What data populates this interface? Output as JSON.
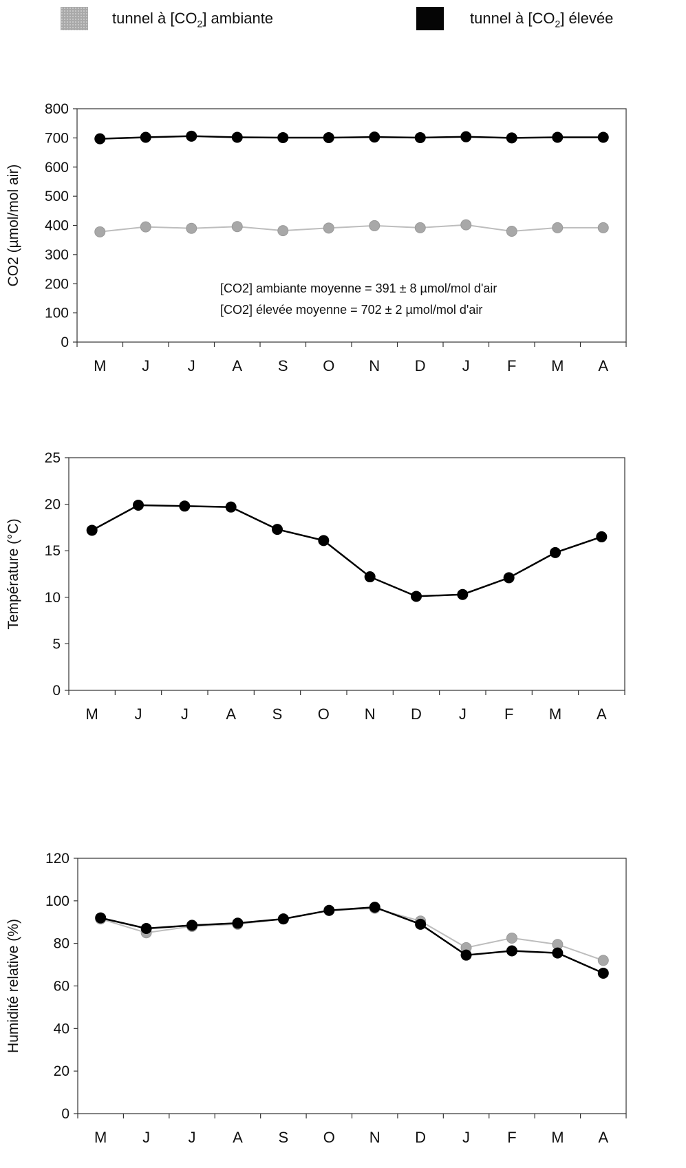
{
  "legend": {
    "ambient": {
      "prefix": "tunnel à [CO",
      "sub": "2",
      "suffix": "] ambiante"
    },
    "elevated": {
      "prefix": "tunnel à [CO",
      "sub": "2",
      "suffix": "] élevée"
    }
  },
  "colors": {
    "ambient": "#a9a9a9",
    "elevated": "#000000"
  },
  "chart_data": [
    {
      "type": "line",
      "ylabel": "CO2 (µmol/mol air)",
      "categories": [
        "M",
        "J",
        "J",
        "A",
        "S",
        "O",
        "N",
        "D",
        "J",
        "F",
        "M",
        "A"
      ],
      "ylim": [
        0,
        800
      ],
      "yticks": [
        0,
        100,
        200,
        300,
        400,
        500,
        600,
        700,
        800
      ],
      "series": [
        {
          "key": "ambient",
          "values": [
            378,
            395,
            390,
            396,
            382,
            391,
            399,
            392,
            402,
            380,
            392,
            392
          ]
        },
        {
          "key": "elevated",
          "values": [
            697,
            702,
            706,
            702,
            701,
            701,
            703,
            701,
            704,
            700,
            702,
            702
          ]
        }
      ],
      "annotations": [
        "[CO2] ambiante moyenne = 391 ± 8 µmol/mol d'air",
        "[CO2] élevée moyenne = 702 ± 2 µmol/mol d'air"
      ]
    },
    {
      "type": "line",
      "ylabel": "Température (°C)",
      "categories": [
        "M",
        "J",
        "J",
        "A",
        "S",
        "O",
        "N",
        "D",
        "J",
        "F",
        "M",
        "A"
      ],
      "ylim": [
        0,
        25
      ],
      "yticks": [
        0,
        5,
        10,
        15,
        20,
        25
      ],
      "series": [
        {
          "key": "elevated",
          "values": [
            17.2,
            19.9,
            19.8,
            19.7,
            17.3,
            16.1,
            12.2,
            10.1,
            10.3,
            12.1,
            14.8,
            16.5
          ]
        }
      ],
      "annotations": []
    },
    {
      "type": "line",
      "ylabel": "Humidité relative (%)",
      "categories": [
        "M",
        "J",
        "J",
        "A",
        "S",
        "O",
        "N",
        "D",
        "J",
        "F",
        "M",
        "A"
      ],
      "ylim": [
        0,
        120
      ],
      "yticks": [
        0,
        20,
        40,
        60,
        80,
        100,
        120
      ],
      "series": [
        {
          "key": "ambient",
          "values": [
            91.5,
            85,
            88,
            89,
            91.5,
            95.5,
            96.5,
            90.5,
            78,
            82.5,
            79.5,
            72
          ]
        },
        {
          "key": "elevated",
          "values": [
            92,
            87,
            88.5,
            89.5,
            91.5,
            95.5,
            97,
            89,
            74.5,
            76.5,
            75.5,
            66
          ]
        }
      ],
      "annotations": []
    }
  ]
}
